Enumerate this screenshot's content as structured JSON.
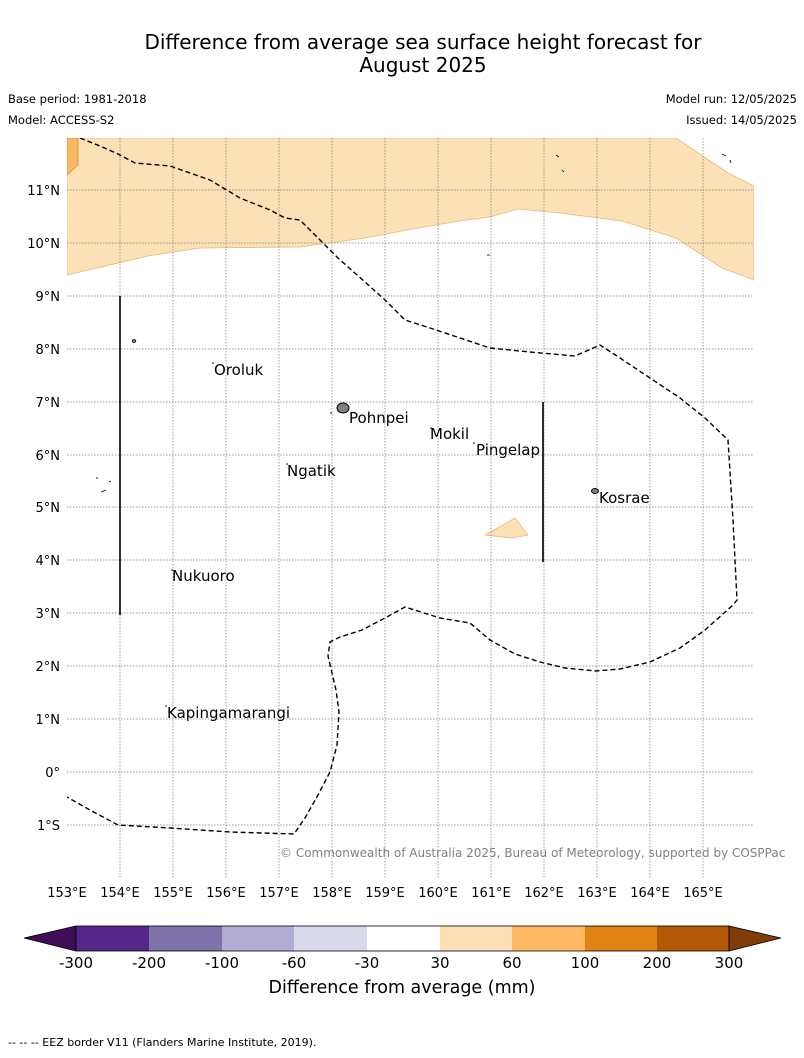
{
  "header": {
    "title_line1": "Difference from average sea surface height forecast for",
    "title_line2": "August 2025",
    "base_period": "Base period: 1981-2018",
    "model": "Model: ACCESS-S2",
    "model_run": "Model run: 12/05/2025",
    "issued": "Issued: 14/05/2025"
  },
  "map": {
    "lon_labels": [
      "153°E",
      "154°E",
      "155°E",
      "156°E",
      "157°E",
      "158°E",
      "159°E",
      "160°E",
      "161°E",
      "162°E",
      "163°E",
      "164°E",
      "165°E"
    ],
    "lat_labels": [
      "11°N",
      "10°N",
      "9°N",
      "8°N",
      "7°N",
      "6°N",
      "5°N",
      "4°N",
      "3°N",
      "2°N",
      "1°N",
      "0°",
      "1°S"
    ],
    "places": [
      {
        "name": "Oroluk"
      },
      {
        "name": "Pohnpei"
      },
      {
        "name": "Mokil"
      },
      {
        "name": "Pingelap"
      },
      {
        "name": "Ngatik"
      },
      {
        "name": "Kosrae"
      },
      {
        "name": "Nukuoro"
      },
      {
        "name": "Kapingamarangi"
      }
    ],
    "copyright": "© Commonwealth of Australia 2025, Bureau of Meteorology, supported by COSPPac"
  },
  "colorbar": {
    "title": "Difference from average (mm)",
    "tick_labels": [
      "-300",
      "-200",
      "-100",
      "-60",
      "-30",
      "30",
      "60",
      "100",
      "200",
      "300"
    ],
    "colors": [
      "#3f0d57",
      "#542788",
      "#8073ac",
      "#b2abd2",
      "#d8daeb",
      "#ffffff",
      "#fee0b6",
      "#fdb863",
      "#e08214",
      "#b35806",
      "#7f3b08"
    ]
  },
  "footer": {
    "note": "--  --  -- EEZ border V11 (Flanders Marine Institute, 2019)."
  }
}
